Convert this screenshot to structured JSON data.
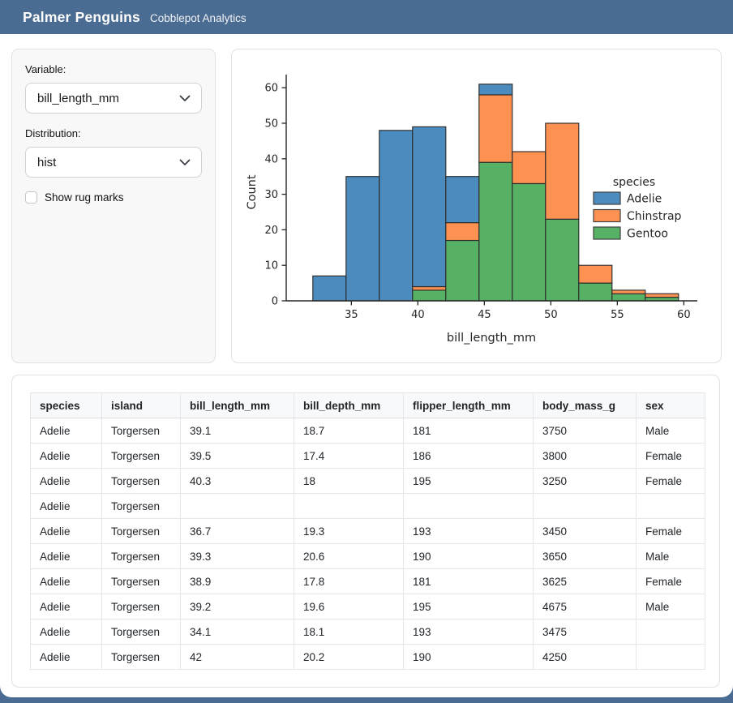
{
  "header": {
    "title": "Palmer Penguins",
    "subtitle": "Cobblepot Analytics"
  },
  "colors": {
    "navbar_bg": "#4a6b92",
    "adelie": "#4c8bbd",
    "chinstrap": "#fc9152",
    "gentoo": "#56b165",
    "bar_edge": "#2d2d2d"
  },
  "sidebar": {
    "variable_label": "Variable:",
    "variable_value": "bill_length_mm",
    "distribution_label": "Distribution:",
    "distribution_value": "hist",
    "rug_label": "Show rug marks",
    "rug_checked": false
  },
  "chart_data": {
    "type": "bar",
    "subtype": "stacked-histogram",
    "title": "",
    "xlabel": "bill_length_mm",
    "ylabel": "Count",
    "bin_start": 32.1,
    "bin_width": 2.5,
    "bin_edges": [
      32.1,
      34.6,
      37.1,
      39.6,
      42.1,
      44.6,
      47.1,
      49.6,
      52.1,
      54.6,
      57.1,
      59.6
    ],
    "x_ticks": [
      35,
      40,
      45,
      50,
      55,
      60
    ],
    "y_ticks": [
      0,
      10,
      20,
      30,
      40,
      50,
      60
    ],
    "xlim": [
      30.1,
      61
    ],
    "ylim": [
      0,
      64
    ],
    "grid": false,
    "stack_order_bottom_to_top": [
      "Gentoo",
      "Chinstrap",
      "Adelie"
    ],
    "series": [
      {
        "name": "Gentoo",
        "color": "#56b165",
        "values": [
          0,
          0,
          0,
          3,
          17,
          39,
          33,
          23,
          5,
          2,
          1
        ]
      },
      {
        "name": "Chinstrap",
        "color": "#fc9152",
        "values": [
          0,
          0,
          0,
          1,
          5,
          19,
          9,
          27,
          5,
          1,
          1
        ]
      },
      {
        "name": "Adelie",
        "color": "#4c8bbd",
        "values": [
          7,
          35,
          48,
          45,
          13,
          3,
          0,
          0,
          0,
          0,
          0
        ]
      }
    ],
    "bar_totals": [
      7,
      35,
      48,
      49,
      35,
      61,
      42,
      50,
      10,
      3,
      2
    ],
    "legend": {
      "title": "species",
      "position": "right",
      "entries": [
        "Adelie",
        "Chinstrap",
        "Gentoo"
      ]
    }
  },
  "table": {
    "columns": [
      "species",
      "island",
      "bill_length_mm",
      "bill_depth_mm",
      "flipper_length_mm",
      "body_mass_g",
      "sex"
    ],
    "rows": [
      [
        "Adelie",
        "Torgersen",
        "39.1",
        "18.7",
        "181",
        "3750",
        "Male"
      ],
      [
        "Adelie",
        "Torgersen",
        "39.5",
        "17.4",
        "186",
        "3800",
        "Female"
      ],
      [
        "Adelie",
        "Torgersen",
        "40.3",
        "18",
        "195",
        "3250",
        "Female"
      ],
      [
        "Adelie",
        "Torgersen",
        "",
        "",
        "",
        "",
        ""
      ],
      [
        "Adelie",
        "Torgersen",
        "36.7",
        "19.3",
        "193",
        "3450",
        "Female"
      ],
      [
        "Adelie",
        "Torgersen",
        "39.3",
        "20.6",
        "190",
        "3650",
        "Male"
      ],
      [
        "Adelie",
        "Torgersen",
        "38.9",
        "17.8",
        "181",
        "3625",
        "Female"
      ],
      [
        "Adelie",
        "Torgersen",
        "39.2",
        "19.6",
        "195",
        "4675",
        "Male"
      ],
      [
        "Adelie",
        "Torgersen",
        "34.1",
        "18.1",
        "193",
        "3475",
        ""
      ],
      [
        "Adelie",
        "Torgersen",
        "42",
        "20.2",
        "190",
        "4250",
        ""
      ]
    ]
  }
}
